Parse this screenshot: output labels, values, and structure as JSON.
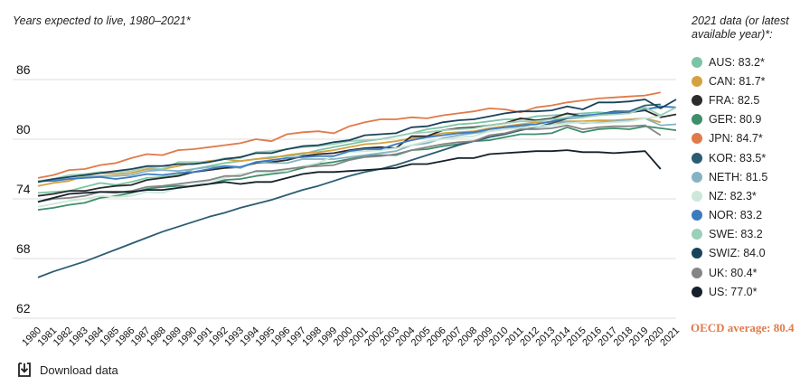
{
  "chart_data": {
    "type": "line",
    "title": "Years expected to live, 1980–2021*",
    "xlabel": "",
    "ylabel": "",
    "x": [
      1980,
      1981,
      1982,
      1983,
      1984,
      1985,
      1986,
      1987,
      1988,
      1989,
      1990,
      1991,
      1992,
      1993,
      1994,
      1995,
      1996,
      1997,
      1998,
      1999,
      2000,
      2001,
      2002,
      2003,
      2004,
      2005,
      2006,
      2007,
      2008,
      2009,
      2010,
      2011,
      2012,
      2013,
      2014,
      2015,
      2016,
      2017,
      2018,
      2019,
      2020,
      2021
    ],
    "x_tick_labels": [
      "1980",
      "1981",
      "1982",
      "1983",
      "1984",
      "1985",
      "1986",
      "1987",
      "1988",
      "1989",
      "1990",
      "1991",
      "1992",
      "1993",
      "1994",
      "1995",
      "1996",
      "1997",
      "1998",
      "1999",
      "2000",
      "2001",
      "2002",
      "2003",
      "2004",
      "2005",
      "2006",
      "2007",
      "2008",
      "2009",
      "2010",
      "2011",
      "2012",
      "2013",
      "2014",
      "2015",
      "2016",
      "2017",
      "2018",
      "2019",
      "2020",
      "2021"
    ],
    "y_ticks": [
      "62",
      "68",
      "74",
      "80",
      "86"
    ],
    "ylim": [
      62,
      88
    ],
    "grid": true,
    "legend_title": "2021 data (or latest available year)*:",
    "legend_position": "right",
    "series": [
      {
        "label": "AUS: 83.2*",
        "color": "#7cc4a4",
        "values": [
          74.6,
          74.7,
          74.8,
          75.2,
          75.6,
          75.4,
          75.7,
          76.1,
          76.2,
          76.4,
          77.0,
          77.3,
          77.6,
          77.8,
          78.0,
          78.2,
          78.3,
          78.5,
          78.9,
          79.2,
          79.5,
          79.8,
          80.0,
          80.3,
          80.6,
          81.0,
          81.2,
          81.5,
          81.6,
          81.8,
          82.0,
          82.0,
          82.3,
          82.4,
          82.5,
          82.6,
          82.7,
          82.6,
          82.8,
          83.0,
          83.2,
          null
        ]
      },
      {
        "label": "CAN: 81.7*",
        "color": "#d4a13f",
        "values": [
          75.3,
          75.6,
          75.8,
          76.3,
          76.6,
          76.5,
          76.6,
          77.0,
          77.0,
          77.3,
          77.6,
          77.8,
          78.0,
          77.8,
          78.0,
          78.1,
          78.4,
          78.6,
          78.7,
          78.9,
          79.2,
          79.5,
          79.6,
          79.8,
          80.1,
          80.3,
          80.6,
          80.7,
          80.8,
          81.1,
          81.3,
          81.5,
          81.7,
          81.7,
          81.8,
          81.8,
          81.9,
          81.9,
          82.0,
          82.1,
          81.7,
          null
        ]
      },
      {
        "label": "FRA: 82.5",
        "color": "#2c2c2c",
        "values": [
          74.3,
          74.5,
          74.8,
          74.8,
          75.1,
          75.3,
          75.4,
          75.9,
          76.1,
          76.3,
          76.7,
          76.9,
          77.1,
          77.2,
          77.6,
          77.7,
          77.9,
          78.3,
          78.5,
          78.6,
          78.9,
          79.1,
          79.2,
          79.1,
          80.3,
          80.3,
          80.9,
          81.1,
          81.2,
          81.4,
          81.6,
          82.1,
          81.9,
          82.1,
          82.6,
          82.3,
          82.5,
          82.6,
          82.7,
          82.9,
          82.2,
          82.5
        ]
      },
      {
        "label": "GER: 80.9",
        "color": "#3e8e6b",
        "values": [
          72.9,
          73.1,
          73.4,
          73.6,
          74.1,
          74.3,
          74.6,
          75.0,
          75.2,
          75.3,
          75.3,
          75.5,
          75.9,
          76.0,
          76.3,
          76.5,
          76.7,
          77.1,
          77.5,
          77.7,
          78.0,
          78.3,
          78.4,
          78.4,
          78.9,
          79.0,
          79.3,
          79.5,
          79.8,
          79.9,
          80.2,
          80.5,
          80.5,
          80.6,
          81.2,
          80.7,
          81.0,
          81.1,
          81.0,
          81.3,
          81.1,
          80.9
        ]
      },
      {
        "label": "JPN: 84.7*",
        "color": "#e07a4a",
        "values": [
          76.1,
          76.4,
          76.9,
          77.0,
          77.4,
          77.6,
          78.1,
          78.5,
          78.4,
          78.9,
          79.0,
          79.2,
          79.4,
          79.6,
          80.0,
          79.8,
          80.5,
          80.7,
          80.8,
          80.6,
          81.3,
          81.7,
          82.0,
          82.0,
          82.2,
          82.1,
          82.4,
          82.6,
          82.8,
          83.1,
          83.0,
          82.7,
          83.2,
          83.4,
          83.7,
          83.9,
          84.1,
          84.2,
          84.3,
          84.4,
          84.7,
          null
        ]
      },
      {
        "label": "KOR: 83.5*",
        "color": "#2b5c71",
        "values": [
          66.1,
          66.7,
          67.2,
          67.7,
          68.3,
          68.9,
          69.5,
          70.1,
          70.7,
          71.2,
          71.7,
          72.2,
          72.6,
          73.1,
          73.5,
          73.9,
          74.4,
          74.9,
          75.3,
          75.8,
          76.3,
          76.7,
          77.0,
          77.4,
          77.9,
          78.4,
          78.9,
          79.4,
          79.8,
          80.2,
          80.5,
          80.9,
          81.2,
          81.6,
          82.1,
          82.2,
          82.5,
          82.8,
          82.8,
          83.4,
          83.5,
          null
        ]
      },
      {
        "label": "NETH: 81.5",
        "color": "#85b3c3",
        "values": [
          75.7,
          75.9,
          76.0,
          76.2,
          76.3,
          76.3,
          76.4,
          76.8,
          76.9,
          76.8,
          77.0,
          77.2,
          77.3,
          77.1,
          77.7,
          77.6,
          77.6,
          78.0,
          78.0,
          78.0,
          78.2,
          78.4,
          78.6,
          78.8,
          79.4,
          79.6,
          80.1,
          80.4,
          80.6,
          80.8,
          81.0,
          81.3,
          81.2,
          81.4,
          81.8,
          81.6,
          81.7,
          81.8,
          81.9,
          82.1,
          81.4,
          81.5
        ]
      },
      {
        "label": "NZ: 82.3*",
        "color": "#cde8da",
        "values": [
          73.2,
          73.5,
          73.8,
          74.0,
          74.3,
          74.2,
          74.3,
          74.7,
          74.6,
          75.1,
          75.4,
          75.8,
          76.1,
          76.5,
          76.7,
          76.7,
          76.8,
          77.3,
          77.6,
          78.3,
          78.7,
          78.8,
          78.9,
          79.1,
          79.4,
          79.8,
          80.0,
          80.2,
          80.3,
          80.8,
          81.0,
          81.1,
          81.3,
          81.4,
          81.6,
          81.7,
          81.6,
          81.7,
          81.8,
          82.1,
          82.3,
          null
        ]
      },
      {
        "label": "NOR: 83.2",
        "color": "#3d7bbf",
        "values": [
          75.8,
          75.8,
          76.0,
          76.1,
          76.2,
          76.0,
          76.2,
          76.5,
          76.4,
          76.6,
          76.7,
          77.0,
          77.3,
          77.2,
          77.7,
          77.9,
          78.1,
          78.2,
          78.3,
          78.3,
          78.8,
          79.0,
          79.0,
          79.5,
          79.9,
          80.2,
          80.4,
          80.6,
          80.7,
          81.0,
          81.2,
          81.4,
          81.5,
          81.8,
          82.2,
          82.4,
          82.5,
          82.7,
          82.8,
          83.0,
          83.3,
          83.2
        ]
      },
      {
        "label": "SWE: 83.2",
        "color": "#9ccfb8",
        "values": [
          75.8,
          76.0,
          76.4,
          76.5,
          76.7,
          76.7,
          76.8,
          77.2,
          77.0,
          77.7,
          77.7,
          77.7,
          78.1,
          78.1,
          78.7,
          78.8,
          79.0,
          79.2,
          79.3,
          79.5,
          79.8,
          79.9,
          80.0,
          80.3,
          80.6,
          80.7,
          80.9,
          81.0,
          81.1,
          81.4,
          81.6,
          81.8,
          81.8,
          82.0,
          82.2,
          82.2,
          82.4,
          82.5,
          82.6,
          83.2,
          82.4,
          83.2
        ]
      },
      {
        "label": "SWIZ: 84.0",
        "color": "#19435a",
        "values": [
          75.7,
          76.0,
          76.2,
          76.4,
          76.6,
          76.8,
          77.0,
          77.3,
          77.3,
          77.5,
          77.5,
          77.7,
          78.0,
          78.2,
          78.6,
          78.6,
          79.0,
          79.3,
          79.4,
          79.7,
          79.9,
          80.4,
          80.5,
          80.6,
          81.2,
          81.3,
          81.7,
          81.9,
          82.0,
          82.3,
          82.6,
          82.8,
          82.8,
          82.9,
          83.3,
          83.0,
          83.7,
          83.7,
          83.8,
          84.0,
          83.1,
          84.0
        ]
      },
      {
        "label": "UK: 80.4*",
        "color": "#858585",
        "values": [
          73.7,
          74.0,
          74.1,
          74.3,
          74.7,
          74.6,
          74.8,
          75.2,
          75.3,
          75.5,
          75.7,
          75.9,
          76.3,
          76.3,
          76.8,
          76.8,
          77.0,
          77.2,
          77.3,
          77.4,
          77.9,
          78.2,
          78.3,
          78.5,
          78.9,
          79.2,
          79.5,
          79.7,
          79.8,
          80.4,
          80.6,
          81.0,
          81.0,
          81.1,
          81.4,
          81.0,
          81.2,
          81.3,
          81.3,
          81.4,
          80.4,
          null
        ]
      },
      {
        "label": "US: 77.0*",
        "color": "#14202b",
        "values": [
          73.7,
          74.1,
          74.5,
          74.6,
          74.7,
          74.7,
          74.7,
          74.9,
          74.9,
          75.1,
          75.3,
          75.5,
          75.7,
          75.5,
          75.7,
          75.7,
          76.1,
          76.5,
          76.7,
          76.7,
          76.8,
          76.9,
          77.0,
          77.1,
          77.5,
          77.5,
          77.8,
          78.1,
          78.1,
          78.5,
          78.6,
          78.7,
          78.8,
          78.8,
          78.9,
          78.7,
          78.7,
          78.6,
          78.7,
          78.8,
          77.0,
          null
        ]
      }
    ]
  },
  "oecd_note": "OECD average: 80.4",
  "download": {
    "label": "Download data",
    "icon": "download-icon"
  }
}
